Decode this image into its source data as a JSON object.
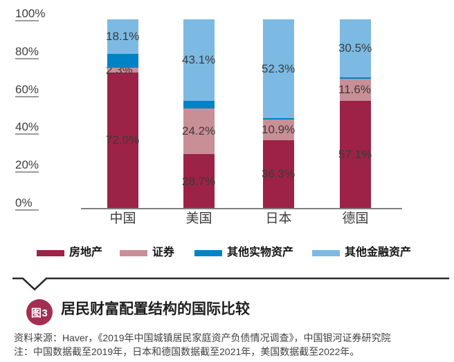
{
  "chart_data": {
    "type": "bar",
    "stacked": true,
    "orientation": "vertical",
    "title": "居民财富配置结构的国际比较",
    "categories": [
      "中国",
      "美国",
      "日本",
      "德国"
    ],
    "series": [
      {
        "name": "房地产",
        "color": "#9c2347",
        "values": [
          72.0,
          28.7,
          36.3,
          57.1
        ],
        "labels": [
          "72.0%",
          "28.7%",
          "36.3%",
          "57.1%"
        ]
      },
      {
        "name": "证券",
        "color": "#c98f97",
        "values": [
          2.3,
          24.2,
          10.9,
          11.6
        ],
        "labels": [
          "2.3%",
          "24.2%",
          "10.9%",
          "11.6%"
        ]
      },
      {
        "name": "其他实物资产",
        "color": "#0082c6",
        "values": [
          7.6,
          4.0,
          0.5,
          0.8
        ],
        "labels": [
          "",
          "",
          "",
          ""
        ]
      },
      {
        "name": "其他金融资产",
        "color": "#7cbae3",
        "values": [
          18.1,
          43.1,
          52.3,
          30.5
        ],
        "labels": [
          "18.1%",
          "43.1%",
          "52.3%",
          "30.5%"
        ]
      }
    ],
    "y_ticks": [
      "100%",
      "80%",
      "60%",
      "40%",
      "20%",
      "0%"
    ],
    "ylim": [
      0,
      100
    ],
    "grid": false,
    "legend_position": "bottom",
    "label_color": "#3b3b3b",
    "axis_color": "#7f7f7f"
  },
  "figure": {
    "badge": "图3",
    "badge_color": "#a42d52",
    "title": "居民财富配置结构的国际比较",
    "source": "资料来源：Haver，《2019年中国城镇居民家庭资产负债情况调查》，中国银河证券研究院",
    "note": "注：中国数据截至2019年，日本和德国数据截至2021年，美国数据截至2022年。"
  }
}
